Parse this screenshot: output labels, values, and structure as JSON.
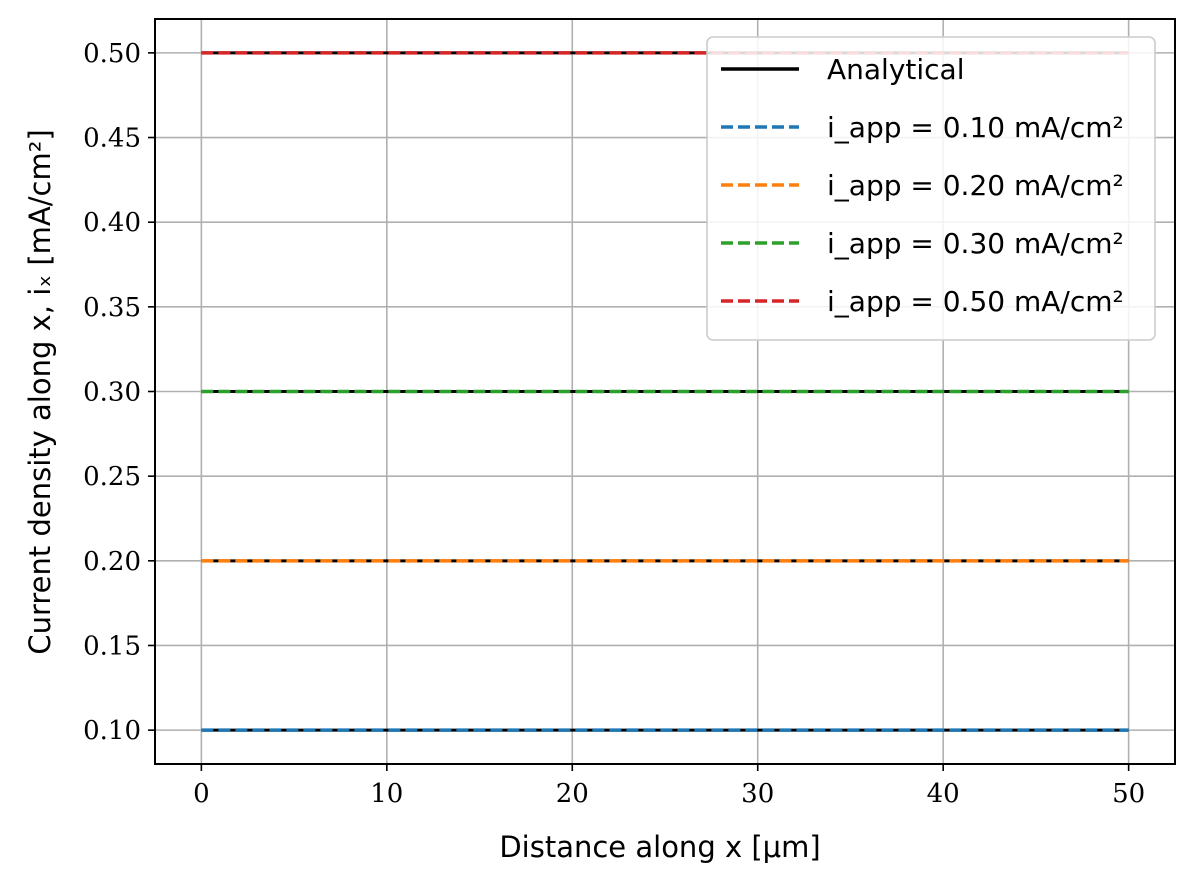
{
  "chart_data": {
    "type": "line",
    "x": [
      0,
      50
    ],
    "xlabel": "Distance along x [μm]",
    "ylabel": "Current density along x, iₓ [mA/cm²]",
    "xlim": [
      -2.5,
      52.5
    ],
    "ylim": [
      0.08,
      0.52
    ],
    "xticks": [
      0,
      10,
      20,
      30,
      40,
      50
    ],
    "xtick_labels": [
      "0",
      "10",
      "20",
      "30",
      "40",
      "50"
    ],
    "yticks": [
      0.1,
      0.15,
      0.2,
      0.25,
      0.3,
      0.35,
      0.4,
      0.45,
      0.5
    ],
    "ytick_labels": [
      "0.10",
      "0.15",
      "0.20",
      "0.25",
      "0.30",
      "0.35",
      "0.40",
      "0.45",
      "0.50"
    ],
    "grid": true,
    "legend_position": "top-right",
    "series": [
      {
        "name": "Analytical",
        "style": "solid",
        "color": "#000000",
        "values": [
          [
            0.1,
            0.1
          ],
          [
            0.2,
            0.2
          ],
          [
            0.3,
            0.3
          ],
          [
            0.5,
            0.5
          ]
        ]
      },
      {
        "name": "i_app = 0.10 mA/cm²",
        "style": "dashed",
        "color": "#1f77b4",
        "values": [
          0.1,
          0.1
        ]
      },
      {
        "name": "i_app = 0.20 mA/cm²",
        "style": "dashed",
        "color": "#ff7f0e",
        "values": [
          0.2,
          0.2
        ]
      },
      {
        "name": "i_app = 0.30 mA/cm²",
        "style": "dashed",
        "color": "#2ca02c",
        "values": [
          0.3,
          0.3
        ]
      },
      {
        "name": "i_app = 0.50 mA/cm²",
        "style": "dashed",
        "color": "#d62728",
        "values": [
          0.5,
          0.5
        ]
      }
    ]
  }
}
